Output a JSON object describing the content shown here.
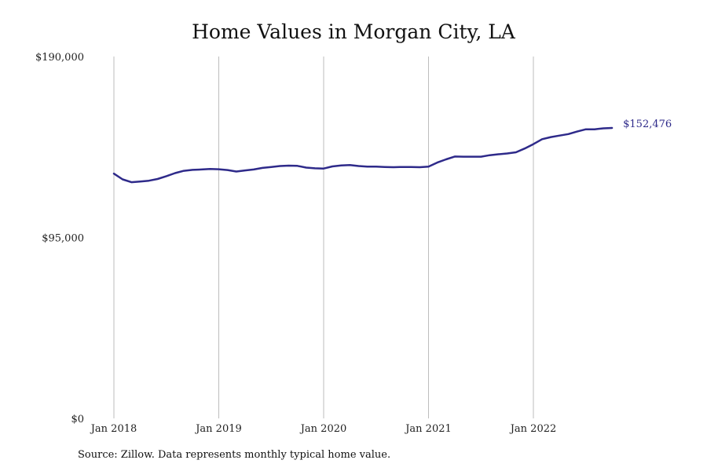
{
  "chart_data": {
    "type": "line",
    "title": "Home Values in Morgan City, LA",
    "source": "Source: Zillow. Data represents monthly typical home value.",
    "ylim": [
      0,
      190000
    ],
    "yticks": [
      {
        "value": 0,
        "label": "$0"
      },
      {
        "value": 95000,
        "label": "$95,000"
      },
      {
        "value": 190000,
        "label": "$190,000"
      }
    ],
    "xticks": [
      {
        "value": "2018-01",
        "label": "Jan 2018"
      },
      {
        "value": "2019-01",
        "label": "Jan 2019"
      },
      {
        "value": "2020-01",
        "label": "Jan 2020"
      },
      {
        "value": "2021-01",
        "label": "Jan 2021"
      },
      {
        "value": "2022-01",
        "label": "Jan 2022"
      }
    ],
    "grid": {
      "vertical": true,
      "horizontal": false
    },
    "line_color": "#2e2a8a",
    "end_label": "$152,476",
    "series": [
      {
        "x": [
          "2018-01",
          "2018-02",
          "2018-03",
          "2018-04",
          "2018-05",
          "2018-06",
          "2018-07",
          "2018-08",
          "2018-09",
          "2018-10",
          "2018-11",
          "2018-12",
          "2019-01",
          "2019-02",
          "2019-03",
          "2019-04",
          "2019-05",
          "2019-06",
          "2019-07",
          "2019-08",
          "2019-09",
          "2019-10",
          "2019-11",
          "2019-12",
          "2020-01",
          "2020-02",
          "2020-03",
          "2020-04",
          "2020-05",
          "2020-06",
          "2020-07",
          "2020-08",
          "2020-09",
          "2020-10",
          "2020-11",
          "2020-12",
          "2021-01",
          "2021-02",
          "2021-03",
          "2021-04",
          "2021-05",
          "2021-06",
          "2021-07",
          "2021-08",
          "2021-09",
          "2021-10",
          "2021-11",
          "2021-12",
          "2022-01",
          "2022-02",
          "2022-03",
          "2022-04",
          "2022-05",
          "2022-06",
          "2022-07",
          "2022-08",
          "2022-09",
          "2022-10"
        ],
        "values": [
          128500,
          125500,
          124000,
          124400,
          124800,
          125700,
          127200,
          128800,
          130000,
          130500,
          130700,
          131000,
          130800,
          130400,
          129600,
          130200,
          130700,
          131500,
          132000,
          132500,
          132700,
          132600,
          131700,
          131300,
          131200,
          132300,
          132800,
          133000,
          132500,
          132200,
          132200,
          132000,
          131900,
          132000,
          132000,
          131900,
          132200,
          134300,
          136000,
          137500,
          137400,
          137400,
          137400,
          138200,
          138700,
          139100,
          139700,
          141700,
          144000,
          146600,
          147700,
          148500,
          149300,
          150600,
          151800,
          151800,
          152300,
          152476
        ]
      }
    ]
  }
}
